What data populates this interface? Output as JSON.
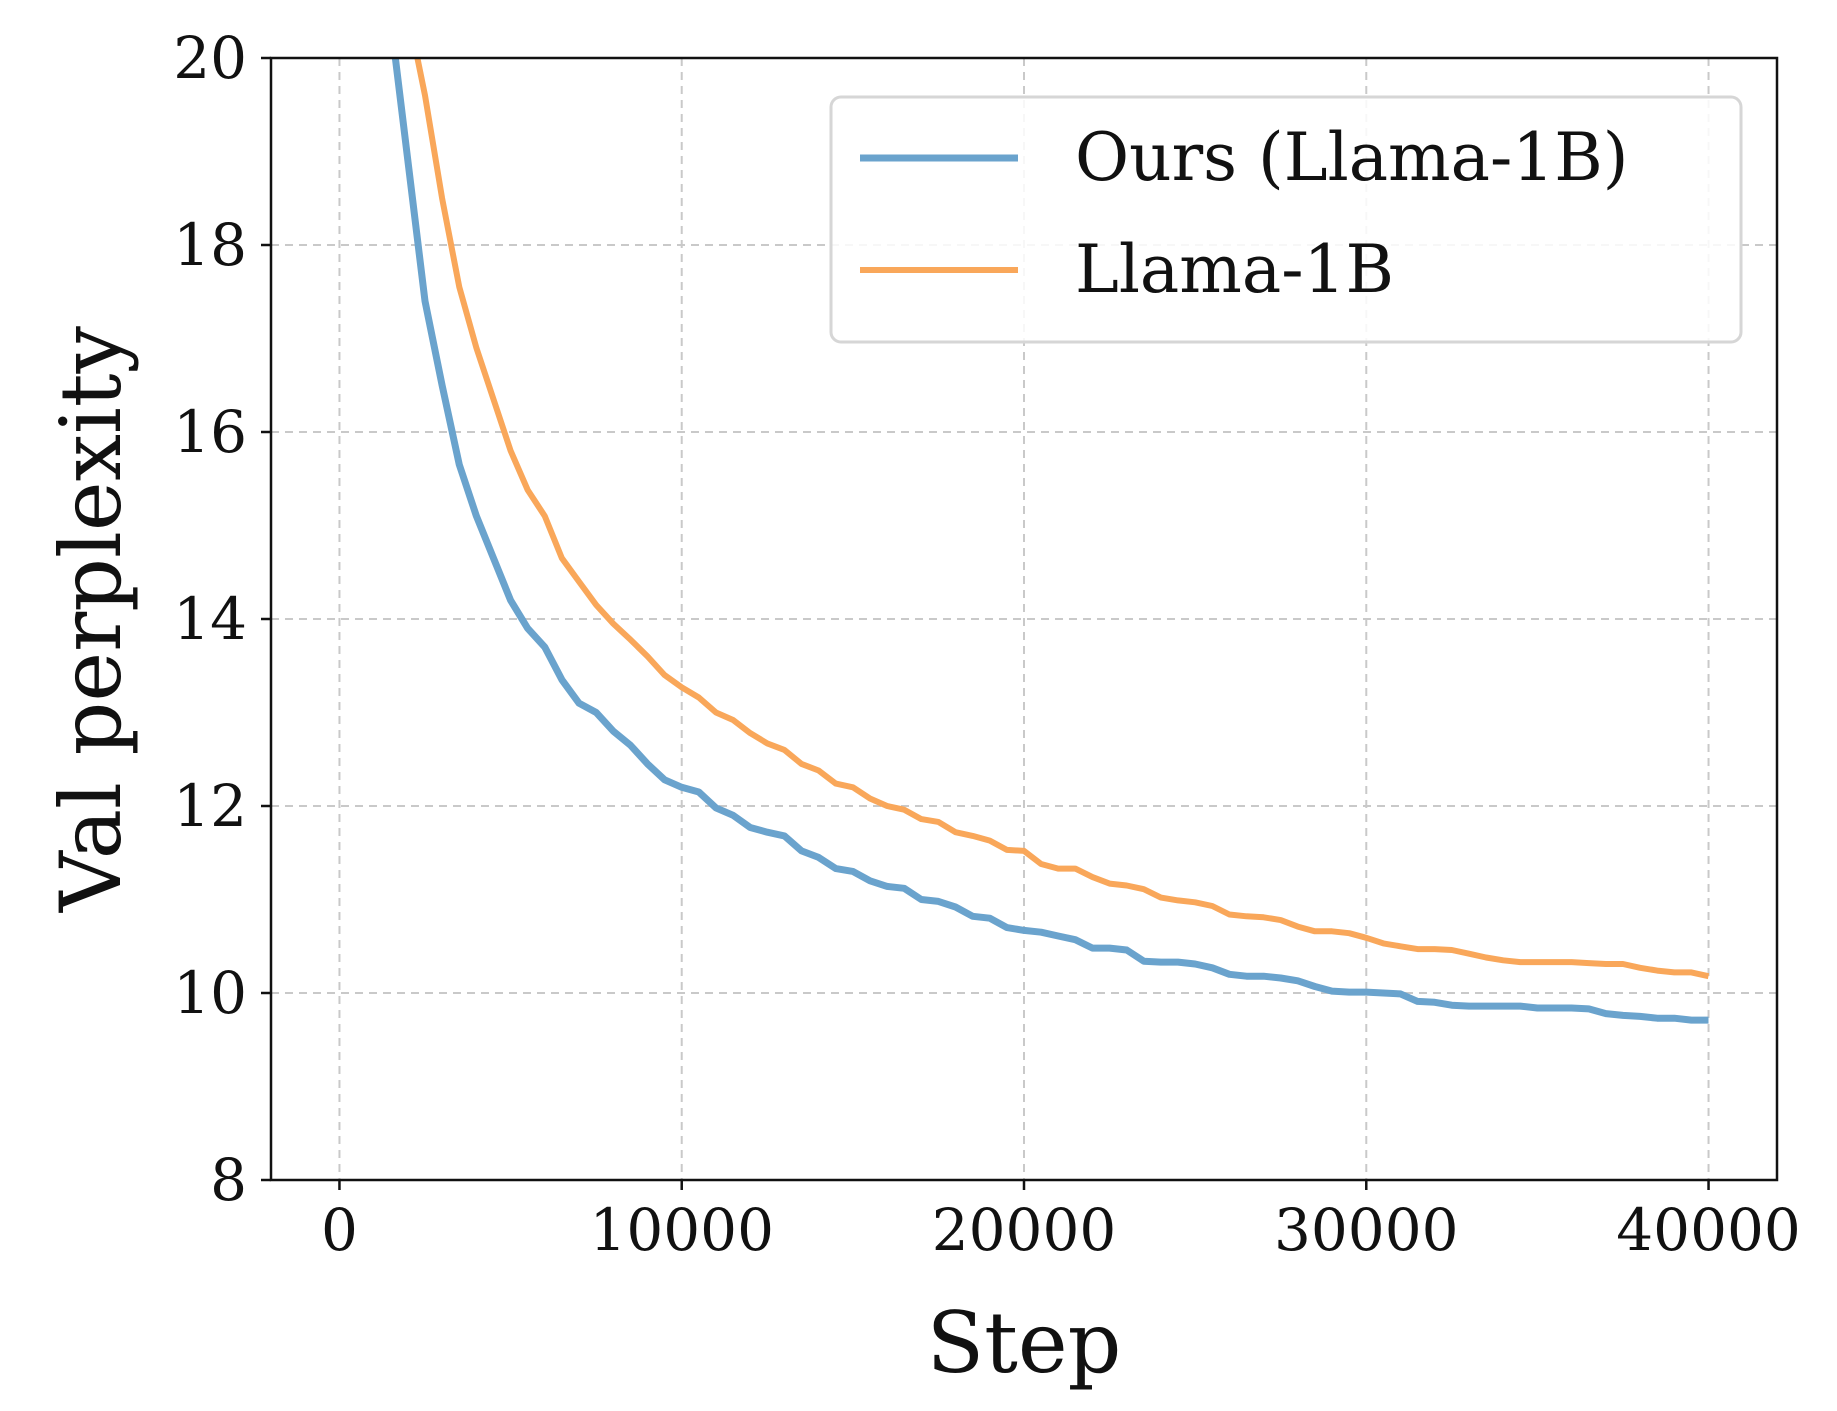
{
  "chart_data": {
    "type": "line",
    "xlabel": "Step",
    "ylabel": "Val perplexity",
    "xlim": [
      -2000,
      42000
    ],
    "ylim": [
      8,
      20
    ],
    "xticks": [
      0,
      10000,
      20000,
      30000,
      40000
    ],
    "xtick_labels": [
      "0",
      "10000",
      "20000",
      "30000",
      "40000"
    ],
    "yticks": [
      8,
      10,
      12,
      14,
      16,
      18,
      20
    ],
    "ytick_labels": [
      "8",
      "10",
      "12",
      "14",
      "16",
      "18",
      "20"
    ],
    "grid": true,
    "legend_position": "top-right",
    "series": [
      {
        "name": "Ours (Llama-1B)",
        "color": "#6aa3cd",
        "x": [
          1500,
          2000,
          2500,
          3000,
          3500,
          4000,
          4500,
          5000,
          5500,
          6000,
          6500,
          7000,
          7500,
          8000,
          8500,
          9000,
          9500,
          10000,
          10500,
          11000,
          11500,
          12000,
          12500,
          13000,
          13500,
          14000,
          14500,
          15000,
          15500,
          16000,
          16500,
          17000,
          17500,
          18000,
          18500,
          19000,
          19500,
          20000,
          20500,
          21000,
          21500,
          22000,
          22500,
          23000,
          23500,
          24000,
          24500,
          25000,
          25500,
          26000,
          26500,
          27000,
          27500,
          28000,
          28500,
          29000,
          29500,
          30000,
          30500,
          31000,
          31500,
          32000,
          32500,
          33000,
          33500,
          34000,
          34500,
          35000,
          35500,
          36000,
          36500,
          37000,
          37500,
          38000,
          38500,
          39000,
          39500,
          40000
        ],
        "values": [
          20.4,
          18.9,
          17.4,
          16.5,
          15.65,
          15.1,
          14.65,
          14.2,
          13.9,
          13.7,
          13.35,
          13.1,
          13.0,
          12.8,
          12.65,
          12.45,
          12.28,
          12.2,
          12.15,
          11.98,
          11.9,
          11.77,
          11.72,
          11.68,
          11.52,
          11.45,
          11.33,
          11.3,
          11.2,
          11.14,
          11.12,
          11.0,
          10.98,
          10.92,
          10.82,
          10.8,
          10.7,
          10.67,
          10.65,
          10.61,
          10.57,
          10.48,
          10.48,
          10.46,
          10.34,
          10.33,
          10.33,
          10.31,
          10.27,
          10.2,
          10.18,
          10.18,
          10.16,
          10.13,
          10.07,
          10.02,
          10.01,
          10.01,
          10.0,
          9.99,
          9.91,
          9.9,
          9.87,
          9.86,
          9.86,
          9.86,
          9.86,
          9.84,
          9.84,
          9.84,
          9.83,
          9.78,
          9.76,
          9.75,
          9.73,
          9.73,
          9.71,
          9.71
        ]
      },
      {
        "name": "Llama-1B",
        "color": "#f9a75a",
        "x": [
          2000,
          2500,
          3000,
          3500,
          4000,
          4500,
          5000,
          5500,
          6000,
          6500,
          7000,
          7500,
          8000,
          8500,
          9000,
          9500,
          10000,
          10500,
          11000,
          11500,
          12000,
          12500,
          13000,
          13500,
          14000,
          14500,
          15000,
          15500,
          16000,
          16500,
          17000,
          17500,
          18000,
          18500,
          19000,
          19500,
          20000,
          20500,
          21000,
          21500,
          22000,
          22500,
          23000,
          23500,
          24000,
          24500,
          25000,
          25500,
          26000,
          26500,
          27000,
          27500,
          28000,
          28500,
          29000,
          29500,
          30000,
          30500,
          31000,
          31500,
          32000,
          32500,
          33000,
          33500,
          34000,
          34500,
          35000,
          35500,
          36000,
          36500,
          37000,
          37500,
          38000,
          38500,
          39000,
          39500,
          40000
        ],
        "values": [
          20.5,
          19.6,
          18.5,
          17.55,
          16.9,
          16.35,
          15.8,
          15.38,
          15.1,
          14.65,
          14.4,
          14.15,
          13.95,
          13.78,
          13.6,
          13.4,
          13.27,
          13.16,
          13.0,
          12.92,
          12.78,
          12.67,
          12.6,
          12.45,
          12.38,
          12.24,
          12.2,
          12.08,
          12.0,
          11.96,
          11.86,
          11.83,
          11.72,
          11.68,
          11.63,
          11.53,
          11.52,
          11.38,
          11.33,
          11.33,
          11.24,
          11.17,
          11.15,
          11.11,
          11.02,
          10.99,
          10.97,
          10.93,
          10.84,
          10.82,
          10.81,
          10.78,
          10.71,
          10.66,
          10.66,
          10.64,
          10.59,
          10.53,
          10.5,
          10.47,
          10.47,
          10.46,
          10.42,
          10.38,
          10.35,
          10.33,
          10.33,
          10.33,
          10.33,
          10.32,
          10.31,
          10.31,
          10.27,
          10.24,
          10.22,
          10.22,
          10.18
        ]
      }
    ]
  }
}
